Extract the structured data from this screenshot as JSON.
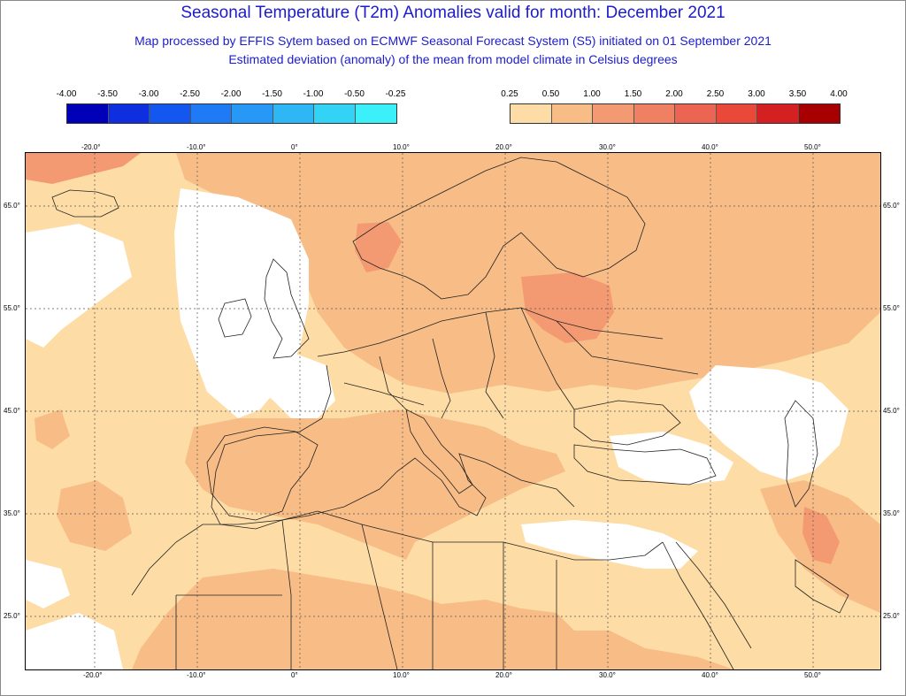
{
  "title": "Seasonal Temperature (T2m) Anomalies valid for month: December 2021",
  "subtitle_1": "Map processed by EFFIS Sytem based on ECMWF Seasonal Forecast System (S5) initiated on 01 September 2021",
  "subtitle_2": "Estimated deviation (anomaly) of the mean from model climate in Celsius degrees",
  "legend_negative": {
    "labels": [
      "-4.00",
      "-3.50",
      "-3.00",
      "-2.50",
      "-2.00",
      "-1.50",
      "-1.00",
      "-0.50",
      "-0.25"
    ],
    "colors": [
      "#0000b8",
      "#0d2fe0",
      "#1456f0",
      "#1e7af5",
      "#2798f5",
      "#2fb6f5",
      "#33d3f5",
      "#3bf0f8"
    ]
  },
  "legend_positive": {
    "labels": [
      "0.25",
      "0.50",
      "1.00",
      "1.50",
      "2.00",
      "2.50",
      "3.00",
      "3.50",
      "4.00"
    ],
    "colors": [
      "#fddca5",
      "#f8bc86",
      "#f39a72",
      "#ef8062",
      "#ec6452",
      "#ea4838",
      "#d42020",
      "#a80000"
    ]
  },
  "axes": {
    "lon_labels": [
      "-20.0°",
      "-10.0°",
      "0°",
      "10.0°",
      "20.0°",
      "30.0°",
      "40.0°",
      "50.0°"
    ],
    "lat_labels": [
      "65.0°",
      "55.0°",
      "45.0°",
      "35.0°",
      "25.0°"
    ]
  }
}
